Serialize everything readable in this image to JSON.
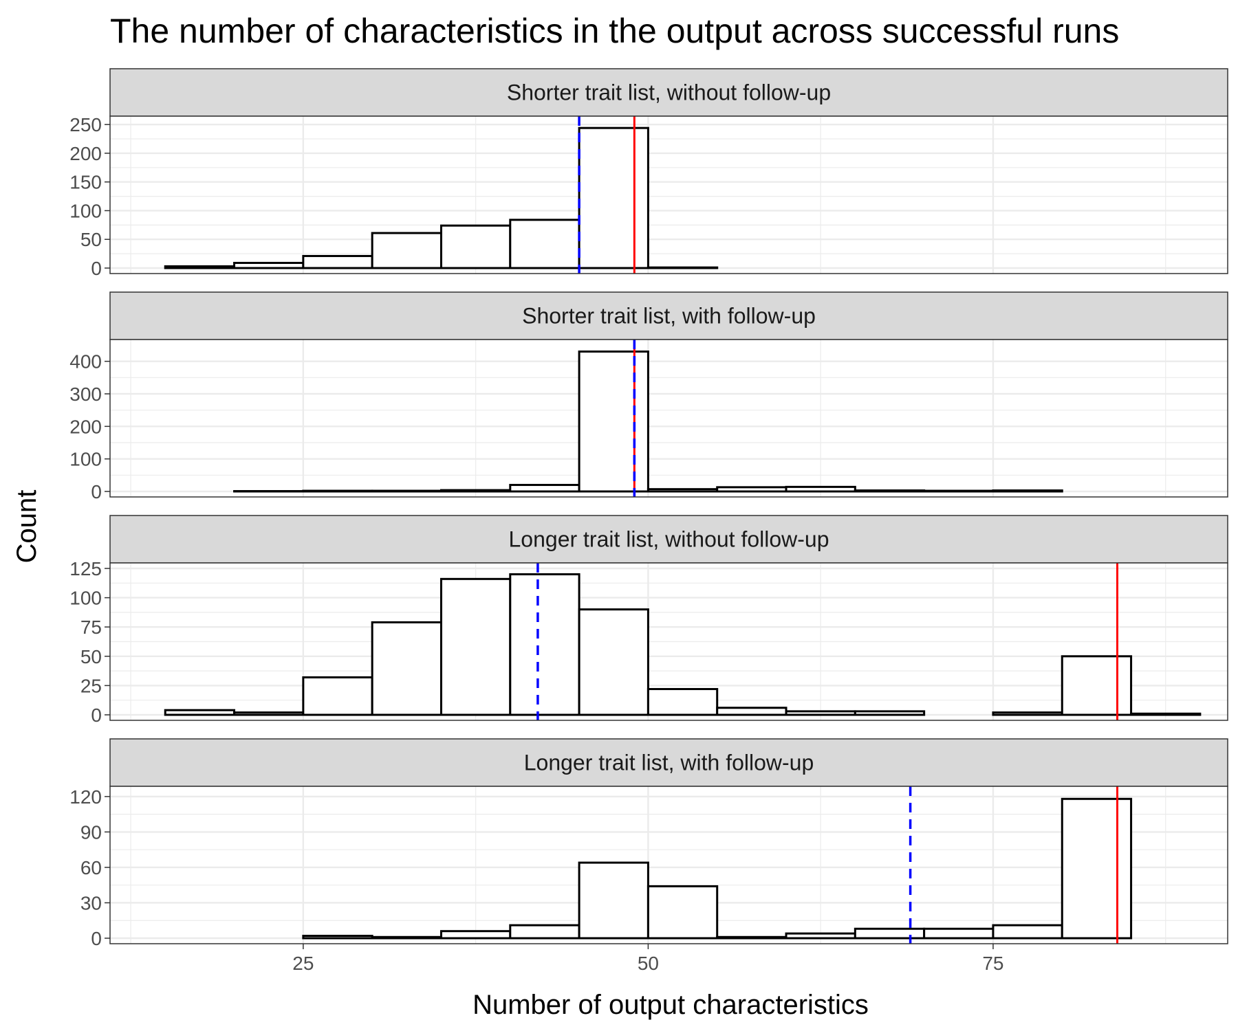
{
  "chart_data": {
    "type": "bar",
    "subtype": "faceted-histogram",
    "title": "The number of characteristics in the output across successful runs",
    "xlabel": "Number of output characteristics",
    "ylabel": "Count",
    "grid": true,
    "xlim": [
      11,
      92
    ],
    "x_ticks": [
      25,
      50,
      75
    ],
    "bin_edges": [
      15,
      20,
      25,
      30,
      35,
      40,
      45,
      50,
      55,
      60,
      65,
      70,
      75,
      80,
      85,
      90
    ],
    "reference_lines": {
      "solid": {
        "color": "#ff0000"
      },
      "dashed": {
        "color": "#0000ff"
      }
    },
    "colors": {
      "bar_fill": "#ffffff",
      "bar_edge": "#000000",
      "strip_fill": "#d9d9d9",
      "grid": "#ebebeb"
    },
    "panels": [
      {
        "name": "Shorter trait list, without follow-up",
        "values": [
          3,
          9,
          21,
          61,
          74,
          84,
          244,
          1,
          0,
          0,
          0,
          0,
          0,
          0,
          0
        ],
        "ylim": [
          0,
          255
        ],
        "y_ticks": [
          0,
          50,
          100,
          150,
          200,
          250
        ],
        "solid_line_x": 49,
        "dashed_line_x": 45
      },
      {
        "name": "Shorter trait list, with follow-up",
        "values": [
          0,
          1,
          2,
          2,
          4,
          20,
          430,
          7,
          13,
          14,
          3,
          2,
          3,
          0,
          0
        ],
        "ylim": [
          0,
          450
        ],
        "y_ticks": [
          0,
          100,
          200,
          300,
          400
        ],
        "solid_line_x": 49,
        "dashed_line_x": 49
      },
      {
        "name": "Longer trait list, without follow-up",
        "values": [
          4,
          2,
          32,
          79,
          116,
          120,
          90,
          22,
          6,
          3,
          3,
          0,
          2,
          50,
          1
        ],
        "ylim": [
          0,
          125
        ],
        "y_ticks": [
          0,
          25,
          50,
          75,
          100,
          125
        ],
        "solid_line_x": 84,
        "dashed_line_x": 42
      },
      {
        "name": "Longer trait list, with follow-up",
        "values": [
          0,
          0,
          2,
          1,
          6,
          11,
          64,
          44,
          1,
          4,
          8,
          8,
          11,
          118,
          0
        ],
        "ylim": [
          0,
          124
        ],
        "y_ticks": [
          0,
          30,
          60,
          90,
          120
        ],
        "solid_line_x": 84,
        "dashed_line_x": 69
      }
    ]
  }
}
